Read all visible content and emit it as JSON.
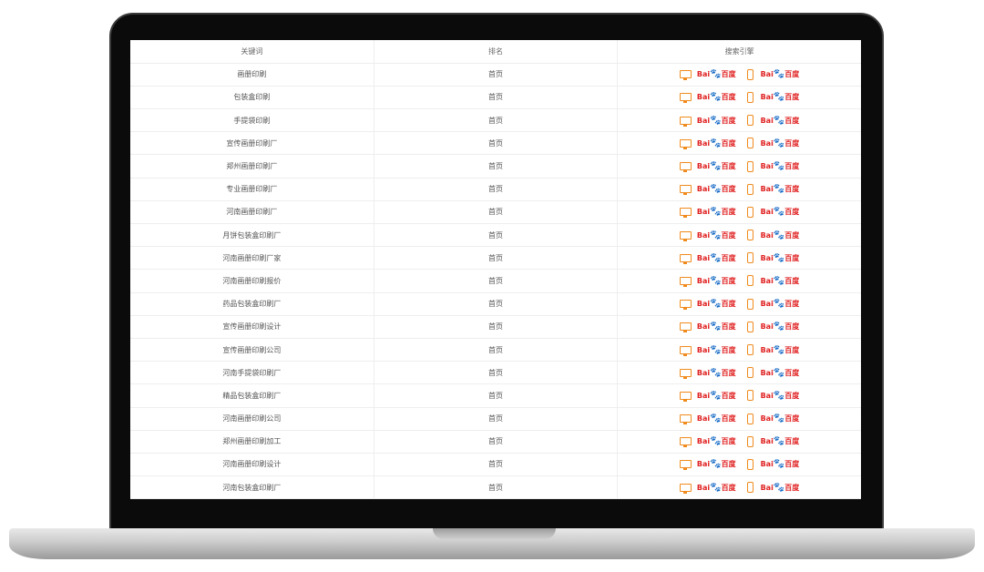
{
  "table": {
    "headers": [
      "关键词",
      "排名",
      "搜索引擎"
    ],
    "rows": [
      {
        "keyword": "画册印刷",
        "rank": "首页"
      },
      {
        "keyword": "包装盒印刷",
        "rank": "首页"
      },
      {
        "keyword": "手提袋印刷",
        "rank": "首页"
      },
      {
        "keyword": "宣传画册印刷厂",
        "rank": "首页"
      },
      {
        "keyword": "郑州画册印刷厂",
        "rank": "首页"
      },
      {
        "keyword": "专业画册印刷厂",
        "rank": "首页"
      },
      {
        "keyword": "河南画册印刷厂",
        "rank": "首页"
      },
      {
        "keyword": "月饼包装盒印刷厂",
        "rank": "首页"
      },
      {
        "keyword": "河南画册印刷厂家",
        "rank": "首页"
      },
      {
        "keyword": "河南画册印刷报价",
        "rank": "首页"
      },
      {
        "keyword": "药品包装盒印刷厂",
        "rank": "首页"
      },
      {
        "keyword": "宣传画册印刷设计",
        "rank": "首页"
      },
      {
        "keyword": "宣传画册印刷公司",
        "rank": "首页"
      },
      {
        "keyword": "河南手提袋印刷厂",
        "rank": "首页"
      },
      {
        "keyword": "精品包装盒印刷厂",
        "rank": "首页"
      },
      {
        "keyword": "河南画册印刷公司",
        "rank": "首页"
      },
      {
        "keyword": "郑州画册印刷加工",
        "rank": "首页"
      },
      {
        "keyword": "河南画册印刷设计",
        "rank": "首页"
      },
      {
        "keyword": "河南包装盒印刷厂",
        "rank": "首页"
      }
    ],
    "engine_logo": "Bai百度",
    "engine_icons": [
      "desktop-icon",
      "mobile-icon"
    ]
  },
  "colors": {
    "accent": "#f08a1c",
    "baidu_red": "#e02020",
    "baidu_blue": "#2932e1"
  }
}
